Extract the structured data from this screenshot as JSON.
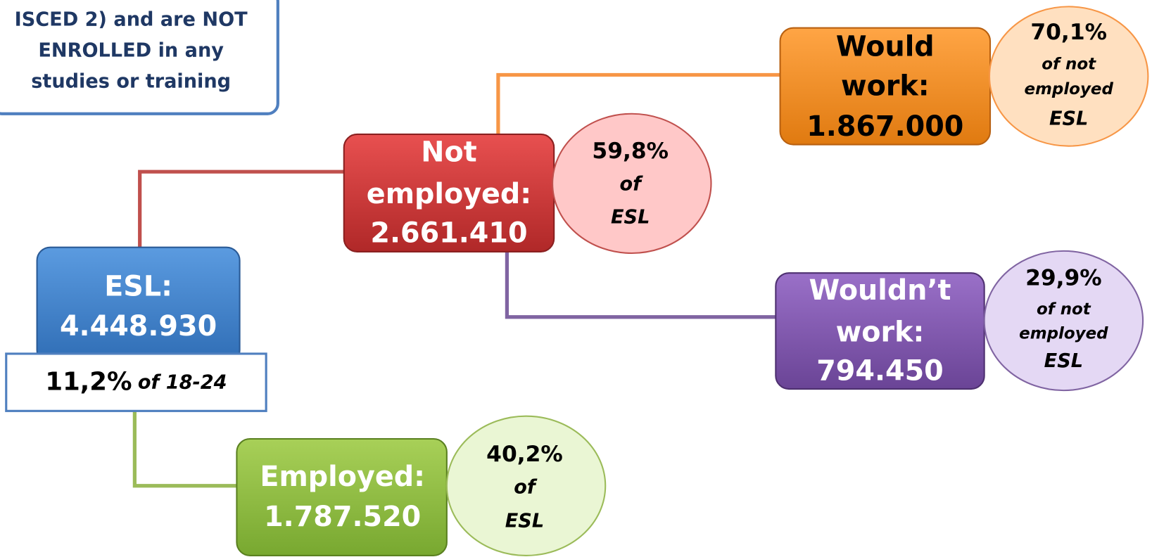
{
  "note": {
    "lines": [
      "ISCED 2) and are NOT",
      "ENROLLED in any",
      "studies or training"
    ]
  },
  "nodes": [
    {
      "lines": [
        "ESL:",
        "4.448.930"
      ],
      "share": {
        "value": "11,2%",
        "of": "of 18-24"
      }
    },
    {
      "lines": [
        "Not",
        "employed:",
        "2.661.410"
      ],
      "share": {
        "lines": [
          "59,8%",
          "of",
          "ESL"
        ]
      }
    },
    {
      "lines": [
        "Would",
        "work:",
        "1.867.000"
      ],
      "share": {
        "lines": [
          "70,1%",
          "of  not",
          "employed",
          "ESL"
        ]
      }
    },
    {
      "lines": [
        "Wouldn’t",
        "work:",
        "794.450"
      ],
      "share": {
        "lines": [
          "29,9%",
          "of  not",
          "employed",
          "ESL"
        ]
      }
    },
    {
      "lines": [
        "Employed:",
        "1.787.520"
      ],
      "share": {
        "lines": [
          "40,2%",
          "of",
          "ESL"
        ]
      }
    }
  ]
}
